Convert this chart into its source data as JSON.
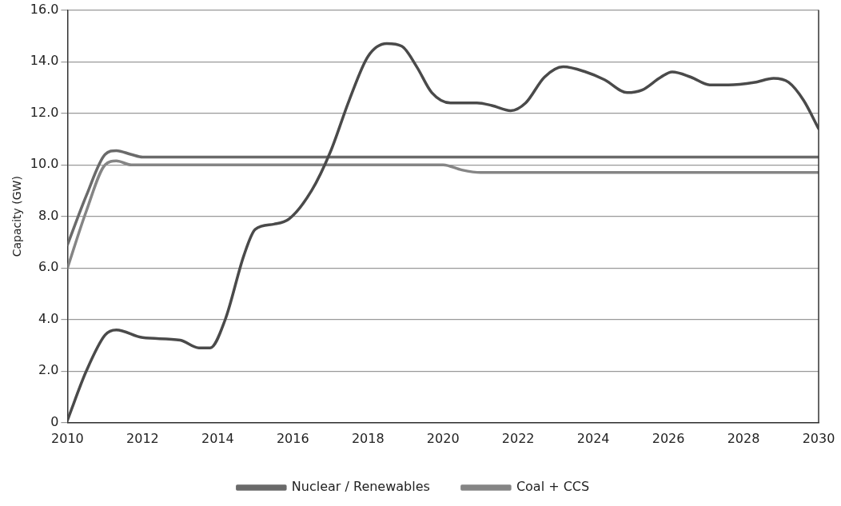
{
  "chart_data": {
    "type": "line",
    "ylabel": "Capacity (GW)",
    "xlim": [
      2010,
      2030
    ],
    "xticks": [
      2010,
      2012,
      2014,
      2016,
      2018,
      2020,
      2022,
      2024,
      2026,
      2028,
      2030
    ],
    "ylim": [
      0,
      16
    ],
    "yticks": [
      {
        "value": 0,
        "label": "0"
      },
      {
        "value": 2,
        "label": "2.0"
      },
      {
        "value": 4,
        "label": "4.0"
      },
      {
        "value": 6,
        "label": "6.0"
      },
      {
        "value": 8,
        "label": "8.0"
      },
      {
        "value": 10,
        "label": "10.0"
      },
      {
        "value": 12,
        "label": "12.0"
      },
      {
        "value": 14,
        "label": "14.0"
      },
      {
        "value": 16,
        "label": "16.0"
      }
    ],
    "grid": "y",
    "legend": "bottom",
    "marker": "none",
    "line_style": "solid",
    "series": [
      {
        "color": "#4a4a4a",
        "x": [
          2010,
          2010.5,
          2011,
          2011.3,
          2012,
          2013,
          2013.5,
          2013.8,
          2014.2,
          2014.7,
          2015,
          2015.5,
          2015.9,
          2016.5,
          2017,
          2017.5,
          2018,
          2018.5,
          2018.9,
          2019.3,
          2019.7,
          2020.2,
          2020.9,
          2021.3,
          2021.8,
          2022.2,
          2022.7,
          2023.2,
          2023.8,
          2024.3,
          2024.9,
          2025.3,
          2025.8,
          2026.1,
          2026.6,
          2027.1,
          2027.6,
          2028.3,
          2028.8,
          2029.2,
          2029.6,
          2030
        ],
        "values": [
          0.1,
          2.0,
          3.4,
          3.6,
          3.3,
          3.2,
          2.9,
          2.9,
          4.0,
          6.5,
          7.5,
          7.7,
          7.9,
          9.0,
          10.5,
          12.5,
          14.2,
          14.7,
          14.6,
          13.8,
          12.8,
          12.4,
          12.4,
          12.3,
          12.1,
          12.4,
          13.4,
          13.8,
          13.6,
          13.3,
          12.8,
          12.9,
          13.4,
          13.6,
          13.4,
          13.1,
          13.1,
          13.2,
          13.35,
          13.2,
          12.5,
          11.4
        ]
      },
      {
        "name": "Nuclear / Renewables",
        "color": "#6a6a6a",
        "x": [
          2010,
          2010.5,
          2011,
          2011.3,
          2011.7,
          2012,
          2030
        ],
        "values": [
          6.9,
          8.8,
          10.4,
          10.55,
          10.4,
          10.3,
          10.3
        ]
      },
      {
        "name": "Coal + CCS",
        "color": "#858585",
        "x": [
          2010,
          2010.5,
          2011,
          2011.3,
          2011.7,
          2012,
          2020,
          2020.5,
          2021,
          2030
        ],
        "values": [
          6.0,
          8.2,
          10.0,
          10.15,
          10.0,
          10.0,
          10.0,
          9.8,
          9.7,
          9.7
        ]
      }
    ]
  }
}
